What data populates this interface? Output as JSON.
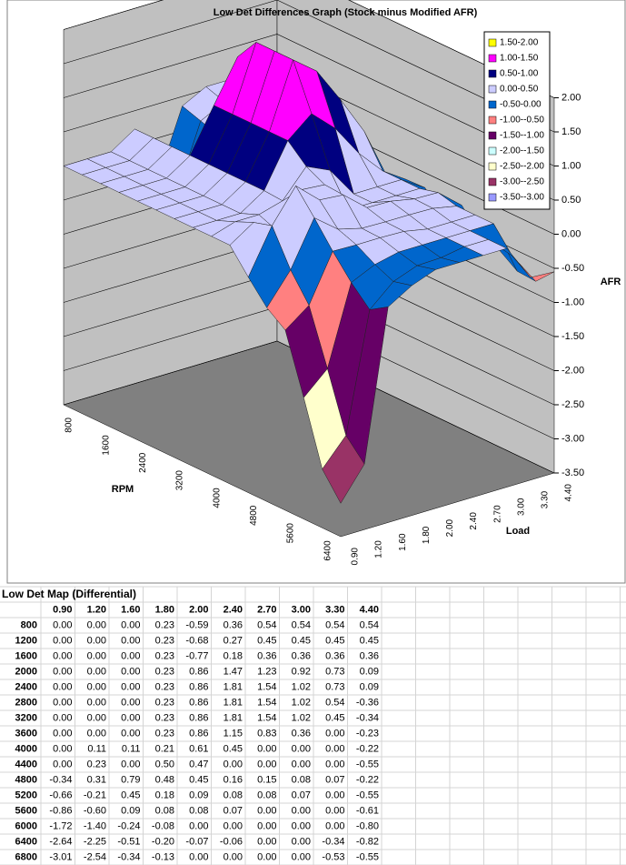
{
  "chart_data": {
    "type": "surface",
    "title": "Low Det Differences Graph (Stock minus Modified AFR)",
    "x_label": "Load",
    "y_label": "RPM",
    "z_label": "AFR",
    "categories": [
      "0.90",
      "1.20",
      "1.60",
      "1.80",
      "2.00",
      "2.40",
      "2.70",
      "3.00",
      "3.30",
      "4.40"
    ],
    "zlim": [
      -3.5,
      2
    ],
    "zticks": [
      {
        "value": -3.5,
        "label": "-3.50"
      },
      {
        "value": -3,
        "label": "-3.00"
      },
      {
        "value": -2.5,
        "label": "-2.50"
      },
      {
        "value": -2,
        "label": "-2.00"
      },
      {
        "value": -1.5,
        "label": "-1.50"
      },
      {
        "value": -1,
        "label": "-1.00"
      },
      {
        "value": -0.5,
        "label": "-0.50"
      },
      {
        "value": 0,
        "label": "0.00"
      },
      {
        "value": 0.5,
        "label": "0.50"
      },
      {
        "value": 1,
        "label": "1.00"
      },
      {
        "value": 1.5,
        "label": "1.50"
      },
      {
        "value": 2,
        "label": "2.00"
      }
    ],
    "legend": [
      {
        "name": "1.50-2.00",
        "color": "#ffff00"
      },
      {
        "name": "1.00-1.50",
        "color": "#ff00ff"
      },
      {
        "name": "0.50-1.00",
        "color": "#000080"
      },
      {
        "name": "0.00-0.50",
        "color": "#ccccff"
      },
      {
        "name": "-0.50-0.00",
        "color": "#0066cc"
      },
      {
        "name": "-1.00--0.50",
        "color": "#ff8080"
      },
      {
        "name": "-1.50--1.00",
        "color": "#660066"
      },
      {
        "name": "-2.00--1.50",
        "color": "#ccffff"
      },
      {
        "name": "-2.50--2.00",
        "color": "#ffffcc"
      },
      {
        "name": "-3.00--2.50",
        "color": "#993366"
      },
      {
        "name": "-3.50--3.00",
        "color": "#9999ff"
      }
    ],
    "series": [
      {
        "name": "800",
        "values": [
          0,
          0,
          0,
          0.23,
          -0.59,
          0.36,
          0.54,
          0.54,
          0.54,
          0.54
        ],
        "value_labels": [
          "0.00",
          "0.00",
          "0.00",
          "0.23",
          "-0.59",
          "0.36",
          "0.54",
          "0.54",
          "0.54",
          "0.54"
        ]
      },
      {
        "name": "1200",
        "values": [
          0,
          0,
          0,
          0.23,
          -0.68,
          0.27,
          0.45,
          0.45,
          0.45,
          0.45
        ],
        "value_labels": [
          "0.00",
          "0.00",
          "0.00",
          "0.23",
          "-0.68",
          "0.27",
          "0.45",
          "0.45",
          "0.45",
          "0.45"
        ]
      },
      {
        "name": "1600",
        "values": [
          0,
          0,
          0,
          0.23,
          -0.77,
          0.18,
          0.36,
          0.36,
          0.36,
          0.36
        ],
        "value_labels": [
          "0.00",
          "0.00",
          "0.00",
          "0.23",
          "-0.77",
          "0.18",
          "0.36",
          "0.36",
          "0.36",
          "0.36"
        ]
      },
      {
        "name": "2000",
        "values": [
          0,
          0,
          0,
          0.23,
          0.86,
          1.47,
          1.23,
          0.92,
          0.73,
          0.09
        ],
        "value_labels": [
          "0.00",
          "0.00",
          "0.00",
          "0.23",
          "0.86",
          "1.47",
          "1.23",
          "0.92",
          "0.73",
          "0.09"
        ]
      },
      {
        "name": "2400",
        "values": [
          0,
          0,
          0,
          0.23,
          0.86,
          1.81,
          1.54,
          1.02,
          0.73,
          0.09
        ],
        "value_labels": [
          "0.00",
          "0.00",
          "0.00",
          "0.23",
          "0.86",
          "1.81",
          "1.54",
          "1.02",
          "0.73",
          "0.09"
        ]
      },
      {
        "name": "2800",
        "values": [
          0,
          0,
          0,
          0.23,
          0.86,
          1.81,
          1.54,
          1.02,
          0.54,
          -0.36
        ],
        "value_labels": [
          "0.00",
          "0.00",
          "0.00",
          "0.23",
          "0.86",
          "1.81",
          "1.54",
          "1.02",
          "0.54",
          "-0.36"
        ]
      },
      {
        "name": "3200",
        "values": [
          0,
          0,
          0,
          0.23,
          0.86,
          1.81,
          1.54,
          1.02,
          0.45,
          -0.34
        ],
        "value_labels": [
          "0.00",
          "0.00",
          "0.00",
          "0.23",
          "0.86",
          "1.81",
          "1.54",
          "1.02",
          "0.45",
          "-0.34"
        ]
      },
      {
        "name": "3600",
        "values": [
          0,
          0,
          0,
          0.23,
          0.86,
          1.15,
          0.83,
          0.36,
          0,
          -0.23
        ],
        "value_labels": [
          "0.00",
          "0.00",
          "0.00",
          "0.23",
          "0.86",
          "1.15",
          "0.83",
          "0.36",
          "0.00",
          "-0.23"
        ]
      },
      {
        "name": "4000",
        "values": [
          0,
          0.11,
          0.11,
          0.21,
          0.61,
          0.45,
          0,
          0,
          0,
          -0.22
        ],
        "value_labels": [
          "0.00",
          "0.11",
          "0.11",
          "0.21",
          "0.61",
          "0.45",
          "0.00",
          "0.00",
          "0.00",
          "-0.22"
        ]
      },
      {
        "name": "4400",
        "values": [
          0,
          0.23,
          0,
          0.5,
          0.47,
          0,
          0,
          0,
          0,
          -0.55
        ],
        "value_labels": [
          "0.00",
          "0.23",
          "0.00",
          "0.50",
          "0.47",
          "0.00",
          "0.00",
          "0.00",
          "0.00",
          "-0.55"
        ]
      },
      {
        "name": "4800",
        "values": [
          -0.34,
          0.31,
          0.79,
          0.48,
          0.45,
          0.16,
          0.15,
          0.08,
          0.07,
          -0.22
        ],
        "value_labels": [
          "-0.34",
          "0.31",
          "0.79",
          "0.48",
          "0.45",
          "0.16",
          "0.15",
          "0.08",
          "0.07",
          "-0.22"
        ]
      },
      {
        "name": "5200",
        "values": [
          -0.66,
          -0.21,
          0.45,
          0.18,
          0.09,
          0.08,
          0.08,
          0.07,
          0,
          -0.55
        ],
        "value_labels": [
          "-0.66",
          "-0.21",
          "0.45",
          "0.18",
          "0.09",
          "0.08",
          "0.08",
          "0.07",
          "0.00",
          "-0.55"
        ]
      },
      {
        "name": "5600",
        "values": [
          -0.86,
          -0.6,
          0.09,
          0.08,
          0.08,
          0.07,
          0,
          0,
          0,
          -0.61
        ],
        "value_labels": [
          "-0.86",
          "-0.60",
          "0.09",
          "0.08",
          "0.08",
          "0.07",
          "0.00",
          "0.00",
          "0.00",
          "-0.61"
        ]
      },
      {
        "name": "6000",
        "values": [
          -1.72,
          -1.4,
          -0.24,
          -0.08,
          0,
          0,
          0,
          0,
          0,
          -0.8
        ],
        "value_labels": [
          "-1.72",
          "-1.40",
          "-0.24",
          "-0.08",
          "0.00",
          "0.00",
          "0.00",
          "0.00",
          "0.00",
          "-0.80"
        ]
      },
      {
        "name": "6400",
        "values": [
          -2.64,
          -2.25,
          -0.51,
          -0.2,
          -0.07,
          -0.06,
          0,
          0,
          -0.34,
          -0.82
        ],
        "value_labels": [
          "-2.64",
          "-2.25",
          "-0.51",
          "-0.20",
          "-0.07",
          "-0.06",
          "0.00",
          "0.00",
          "-0.34",
          "-0.82"
        ]
      },
      {
        "name": "6800",
        "values": [
          -3.01,
          -2.54,
          -0.34,
          -0.13,
          0,
          0,
          0,
          0,
          -0.53,
          -0.55
        ],
        "value_labels": [
          "-3.01",
          "-2.54",
          "-0.34",
          "-0.13",
          "0.00",
          "0.00",
          "0.00",
          "0.00",
          "-0.53",
          "-0.55"
        ]
      }
    ]
  },
  "sheet": {
    "title": "Low Det Map (Differential)"
  }
}
